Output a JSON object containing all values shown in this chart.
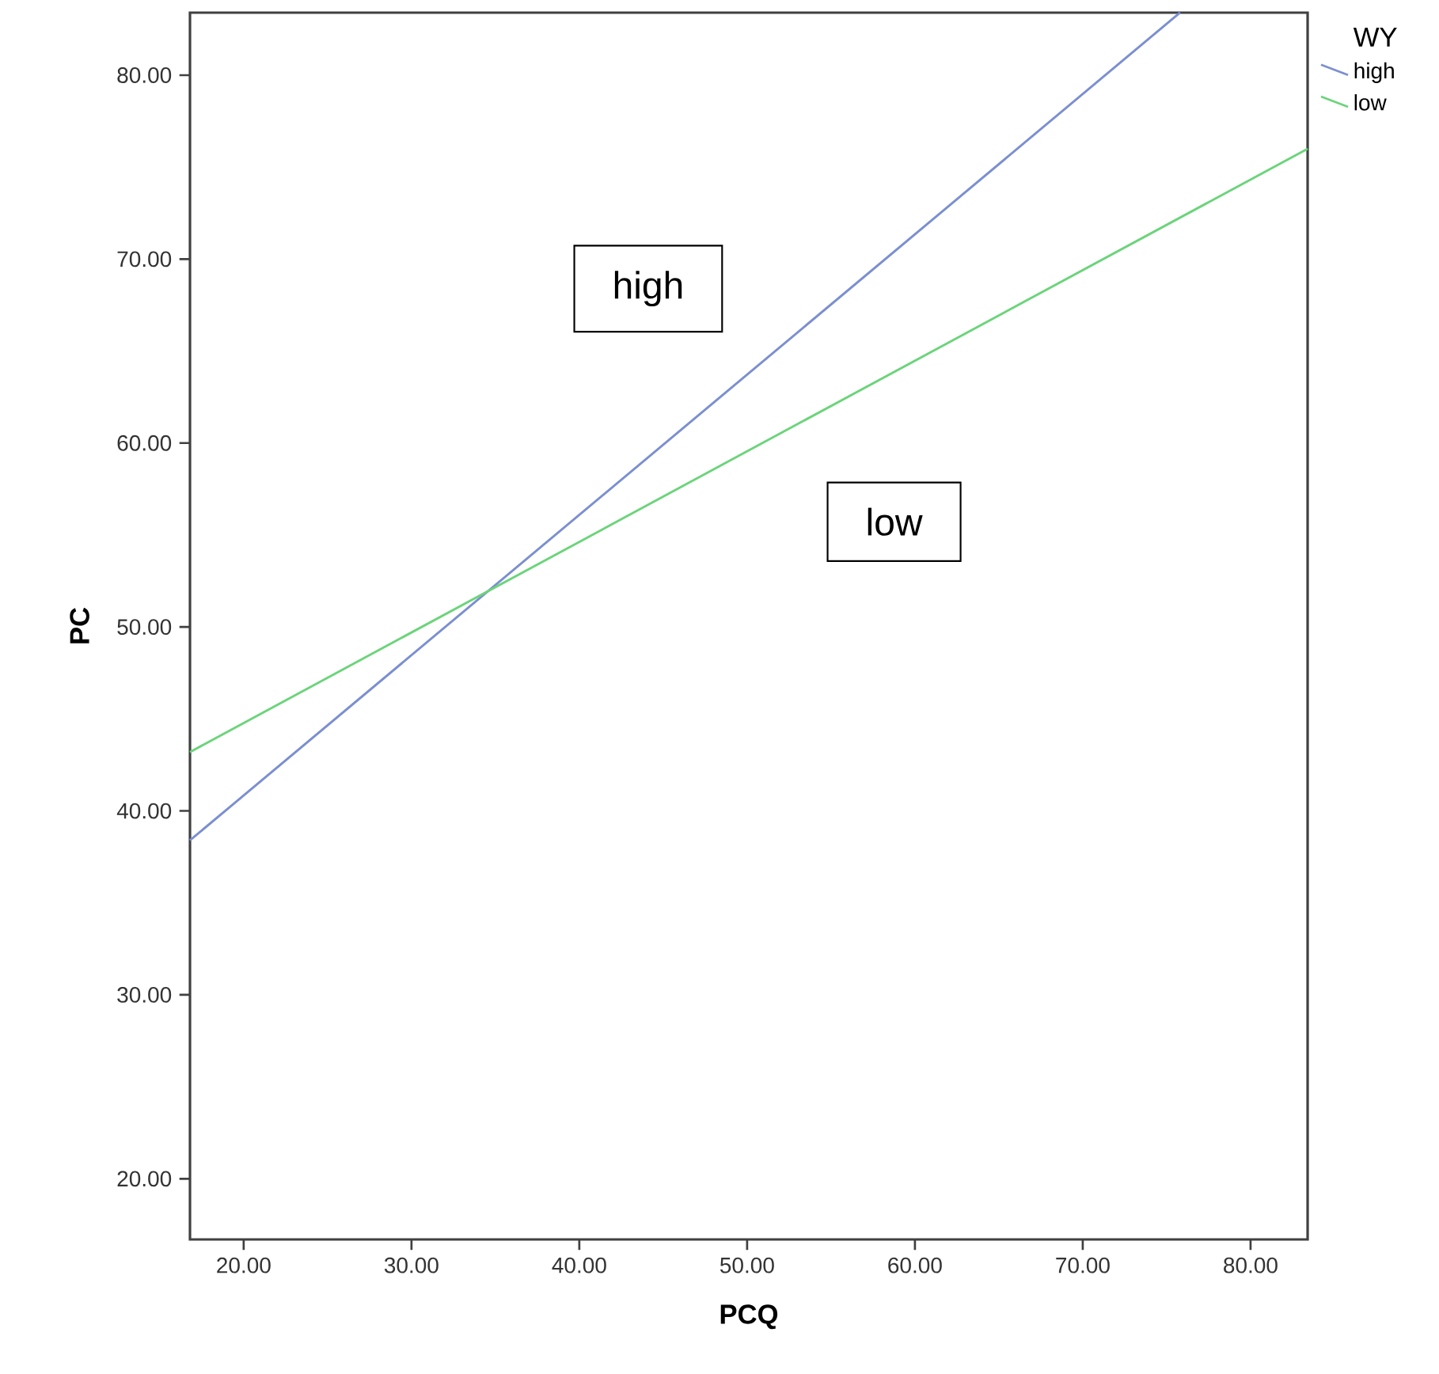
{
  "chart_data": {
    "type": "line",
    "xlabel": "PCQ",
    "ylabel": "PC",
    "legend_title": "WY",
    "legend": "top right",
    "xlim": [
      16.8,
      83.4
    ],
    "ylim": [
      16.7,
      83.4
    ],
    "xticks": [
      {
        "value": 20,
        "label": "20.00"
      },
      {
        "value": 30,
        "label": "30.00"
      },
      {
        "value": 40,
        "label": "40.00"
      },
      {
        "value": 50,
        "label": "50.00"
      },
      {
        "value": 60,
        "label": "60.00"
      },
      {
        "value": 70,
        "label": "70.00"
      },
      {
        "value": 80,
        "label": "80.00"
      }
    ],
    "yticks": [
      {
        "value": 20,
        "label": "20.00"
      },
      {
        "value": 30,
        "label": "30.00"
      },
      {
        "value": 40,
        "label": "40.00"
      },
      {
        "value": 50,
        "label": "50.00"
      },
      {
        "value": 60,
        "label": "60.00"
      },
      {
        "value": 70,
        "label": "70.00"
      },
      {
        "value": 80,
        "label": "80.00"
      }
    ],
    "series": [
      {
        "name": "high",
        "color": "#7b8fd0",
        "x": [
          16.8,
          75.8
        ],
        "values": [
          38.4,
          83.4
        ]
      },
      {
        "name": "low",
        "color": "#6bd47a",
        "x": [
          16.8,
          83.4
        ],
        "values": [
          43.2,
          76.0
        ]
      }
    ],
    "annotations": [
      "high",
      "low"
    ]
  }
}
